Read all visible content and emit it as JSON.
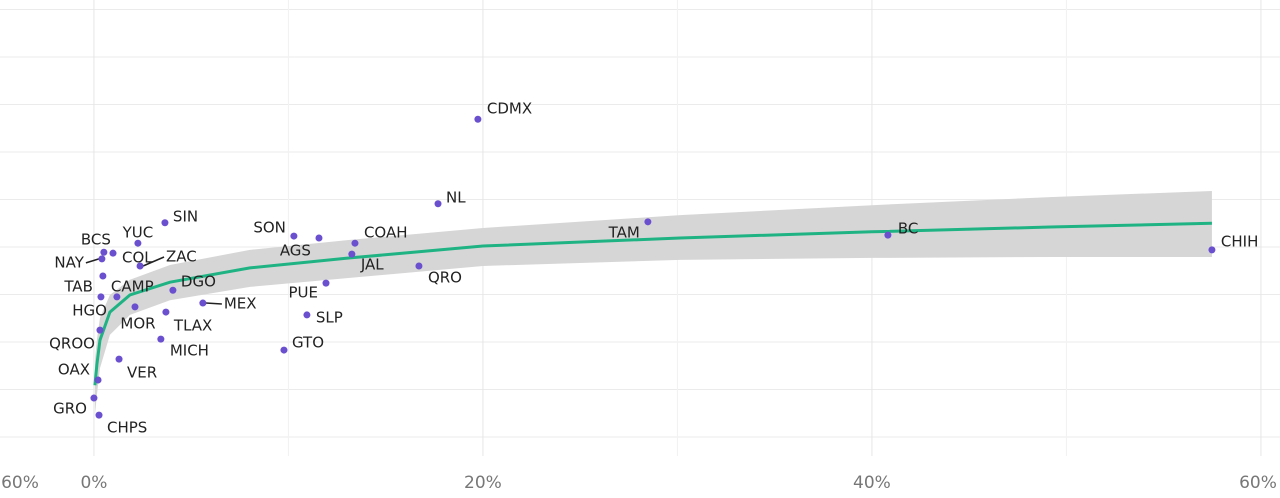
{
  "chart_data": {
    "type": "scatter",
    "labels": [
      "CDMX",
      "NL",
      "TAM",
      "BC",
      "CHIH",
      "SON",
      "AGS",
      "COAH",
      "JAL",
      "QRO",
      "PUE",
      "SLP",
      "GTO",
      "SIN",
      "YUC",
      "BCS",
      "NAY",
      "COL",
      "ZAC",
      "TAB",
      "CAMP",
      "HGO",
      "DGO",
      "MEX",
      "MOR",
      "TLAX",
      "MICH",
      "QROO",
      "VER",
      "OAX",
      "GRO",
      "CHPS"
    ],
    "x": [
      19.74,
      17.69,
      28.48,
      40.82,
      57.48,
      10.28,
      11.57,
      13.42,
      13.26,
      16.71,
      11.93,
      10.95,
      9.77,
      3.65,
      2.26,
      0.51,
      0.41,
      0.98,
      2.37,
      0.46,
      1.18,
      0.36,
      4.06,
      5.6,
      2.11,
      3.7,
      3.44,
      0.31,
      1.29,
      0.21,
      0.0,
      0.26
    ],
    "values": [
      6.69,
      4.91,
      4.53,
      4.25,
      3.94,
      4.23,
      4.19,
      4.08,
      3.85,
      3.6,
      3.24,
      2.57,
      1.83,
      4.51,
      4.08,
      3.89,
      3.75,
      3.87,
      3.6,
      3.39,
      2.95,
      2.95,
      3.09,
      2.82,
      2.74,
      2.63,
      2.06,
      2.25,
      1.64,
      1.2,
      0.82,
      0.46
    ],
    "color": "#6a4fcf",
    "fit": {
      "x": [
        0.05,
        0.15,
        0.31,
        0.82,
        1.85,
        3.91,
        8.02,
        13.16,
        20.0,
        30.13,
        40.0,
        49.15,
        57.48
      ],
      "values": [
        1.09,
        1.52,
        2.04,
        2.63,
        2.99,
        3.26,
        3.56,
        3.77,
        4.02,
        4.19,
        4.32,
        4.42,
        4.5
      ],
      "upper": [
        1.62,
        2.04,
        2.51,
        2.99,
        3.31,
        3.62,
        3.94,
        4.15,
        4.4,
        4.67,
        4.88,
        5.05,
        5.18
      ],
      "lower": [
        0.46,
        0.88,
        1.45,
        2.15,
        2.57,
        2.88,
        3.16,
        3.35,
        3.6,
        3.73,
        3.77,
        3.79,
        3.79
      ],
      "color": "#1fb384",
      "band_color": "#d6d6d6"
    },
    "xlim": [
      -4.83,
      60.98
    ],
    "ylim": [
      -0.4,
      9.2
    ],
    "xticks": [
      {
        "value": 0,
        "label": "0%"
      },
      {
        "value": 20,
        "label": "20%"
      },
      {
        "value": 40,
        "label": "40%"
      },
      {
        "value": 60,
        "label": "60%"
      }
    ],
    "xgrid_minor": [
      10,
      30,
      50
    ],
    "ygrid": [
      0,
      1,
      2,
      3,
      4,
      5,
      6,
      7,
      8,
      9
    ],
    "clipped_tick_label": "60%"
  }
}
